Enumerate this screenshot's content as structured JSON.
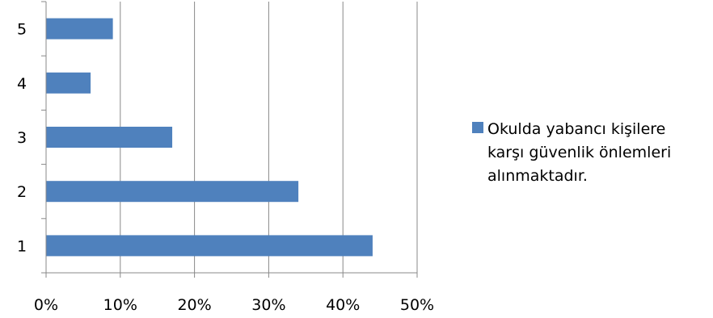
{
  "chart_data": {
    "type": "bar",
    "orientation": "horizontal",
    "categories": [
      "1",
      "2",
      "3",
      "4",
      "5"
    ],
    "series": [
      {
        "name": "Okulda yabancı kişilere karşı güvenlik önlemleri alınmaktadır.",
        "name_lines": [
          "Okulda yabancı kişilere",
          "karşı güvenlik önlemleri",
          "alınmaktadır."
        ],
        "values": [
          44,
          34,
          17,
          6,
          9
        ]
      }
    ],
    "x_ticks": [
      "0%",
      "10%",
      "20%",
      "30%",
      "40%",
      "50%"
    ],
    "xlim": [
      0,
      50
    ],
    "x_unit": "%",
    "title": "",
    "xlabel": "",
    "ylabel": "",
    "grid": "vertical",
    "legend_position": "right",
    "colors": {
      "bar": "#4f81bd",
      "grid": "#888888",
      "axis": "#888888"
    }
  }
}
